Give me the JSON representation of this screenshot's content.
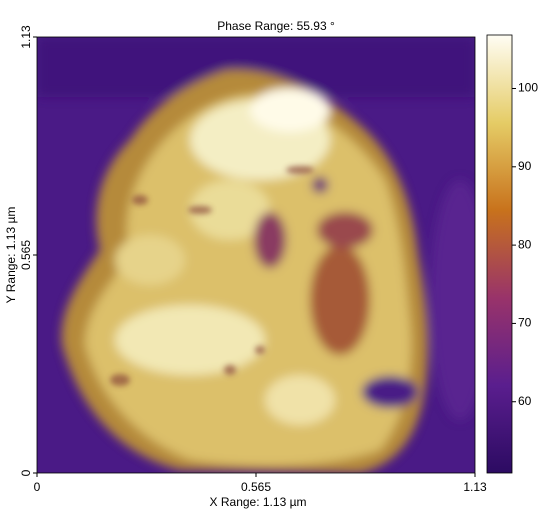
{
  "chart_data": {
    "type": "image",
    "title": "Phase Range:  55.93 °",
    "xlabel": "X Range:  1.13 µm",
    "ylabel": "Y Range:  1.13 µm",
    "xlim": [
      0,
      1.13
    ],
    "xticks": [
      0,
      0.565,
      1.13
    ],
    "ylim": [
      0,
      1.13
    ],
    "yticks": [
      0,
      0.565,
      1.13
    ],
    "clim": [
      50.9,
      106.83
    ],
    "cticks": [
      60,
      70,
      80,
      90,
      100
    ]
  }
}
